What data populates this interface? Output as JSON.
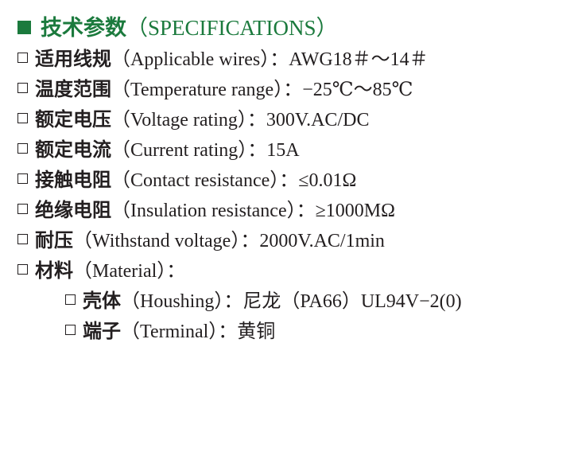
{
  "title": {
    "zh": "技术参数",
    "en": "（SPECIFICATIONS）",
    "color": "#1b7a3d"
  },
  "specs": [
    {
      "zh": "适用线规",
      "en": "（Applicable wires）：",
      "value": "AWG18＃～14＃"
    },
    {
      "zh": "温度范围",
      "en": "（Temperature range）：",
      "value": "−25℃～85℃"
    },
    {
      "zh": "额定电压",
      "en": "（Voltage rating）：",
      "value": "300V.AC/DC"
    },
    {
      "zh": "额定电流",
      "en": "（Current rating）：",
      "value": "15A"
    },
    {
      "zh": "接触电阻",
      "en": "（Contact resistance）：",
      "value": "≤0.01Ω"
    },
    {
      "zh": "绝缘电阻",
      "en": "（Insulation resistance）：",
      "value": "≥1000MΩ"
    },
    {
      "zh": "耐压",
      "en": "（Withstand voltage）：",
      "value": "2000V.AC/1min"
    },
    {
      "zh": "材料",
      "en": "（Material）：",
      "value": ""
    },
    {
      "zh": "壳体",
      "en": "（Houshing）：",
      "value": "尼龙（PA66）UL94V−2(0)"
    },
    {
      "zh": "端子",
      "en": "（Terminal）：",
      "value": "黄铜"
    }
  ]
}
